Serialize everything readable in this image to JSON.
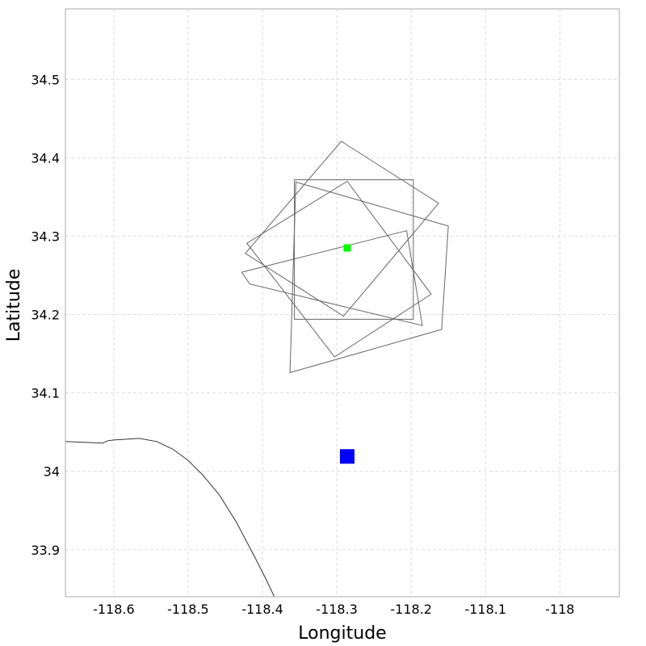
{
  "chart_data": {
    "type": "scatter",
    "xlabel": "Longitude",
    "ylabel": "Latitude",
    "xlim": [
      -118.665,
      -117.92
    ],
    "ylim": [
      33.84,
      34.59
    ],
    "grid": true,
    "x_ticks": [
      -118.6,
      -118.5,
      -118.4,
      -118.3,
      -118.2,
      -118.1,
      -118.0
    ],
    "x_tick_labels": [
      "-118.6",
      "-118.5",
      "-118.4",
      "-118.3",
      "-118.2",
      "-118.1",
      "-118"
    ],
    "y_ticks": [
      33.9,
      34.0,
      34.1,
      34.2,
      34.3,
      34.4,
      34.5
    ],
    "y_tick_labels": [
      "33.9",
      "34",
      "34.1",
      "34.2",
      "34.3",
      "34.4",
      "34.5"
    ],
    "coastline": {
      "color": "#333333",
      "points": [
        [
          -118.665,
          34.038
        ],
        [
          -118.615,
          34.036
        ],
        [
          -118.608,
          34.039
        ],
        [
          -118.6,
          34.04
        ],
        [
          -118.566,
          34.042
        ],
        [
          -118.542,
          34.038
        ],
        [
          -118.52,
          34.028
        ],
        [
          -118.5,
          34.014
        ],
        [
          -118.48,
          33.995
        ],
        [
          -118.458,
          33.97
        ],
        [
          -118.435,
          33.935
        ],
        [
          -118.41,
          33.89
        ],
        [
          -118.395,
          33.862
        ],
        [
          -118.384,
          33.84
        ]
      ]
    },
    "footprints": {
      "color": "#666666",
      "polygons": [
        [
          [
            -118.357,
            34.372
          ],
          [
            -118.197,
            34.372
          ],
          [
            -118.197,
            34.194
          ],
          [
            -118.357,
            34.194
          ]
        ],
        [
          [
            -118.294,
            34.421
          ],
          [
            -118.163,
            34.342
          ],
          [
            -118.291,
            34.198
          ],
          [
            -118.423,
            34.278
          ]
        ],
        [
          [
            -118.355,
            34.369
          ],
          [
            -118.15,
            34.313
          ],
          [
            -118.159,
            34.181
          ],
          [
            -118.363,
            34.126
          ]
        ],
        [
          [
            -118.286,
            34.37
          ],
          [
            -118.173,
            34.226
          ],
          [
            -118.303,
            34.146
          ],
          [
            -118.421,
            34.291
          ]
        ],
        [
          [
            -118.428,
            34.254
          ],
          [
            -118.206,
            34.307
          ],
          [
            -118.185,
            34.186
          ],
          [
            -118.417,
            34.239
          ]
        ]
      ]
    },
    "points": [
      {
        "x": -118.286,
        "y": 34.285,
        "color": "#00ff00",
        "size": 9
      },
      {
        "x": -118.286,
        "y": 34.019,
        "color": "#0000ff",
        "size": 18
      }
    ]
  }
}
